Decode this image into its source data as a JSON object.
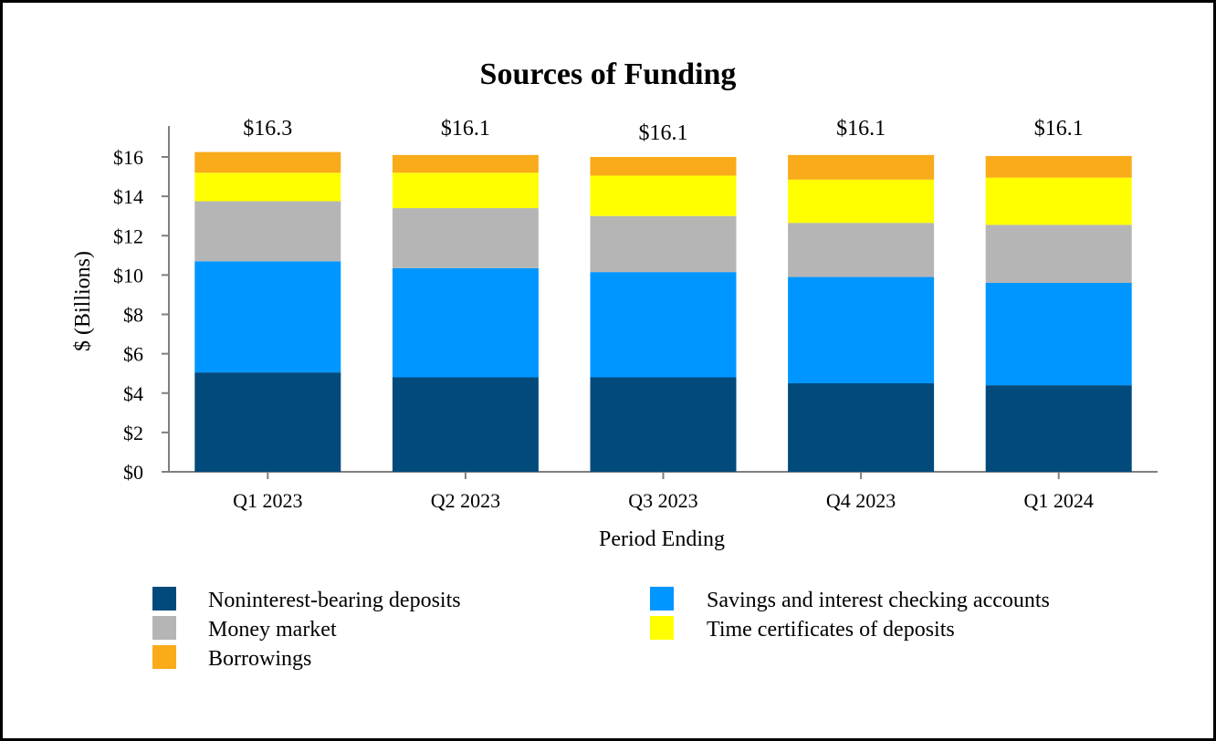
{
  "chart_data": {
    "type": "bar",
    "stacked": true,
    "title": "Sources of Funding",
    "xlabel": "Period Ending",
    "ylabel": "$ (Billions)",
    "ylim": [
      0,
      16
    ],
    "yticks": [
      "$0",
      "$2",
      "$4",
      "$6",
      "$8",
      "$10",
      "$12",
      "$14",
      "$16"
    ],
    "categories": [
      "Q1 2023",
      "Q2 2023",
      "Q3 2023",
      "Q4 2023",
      "Q1 2024"
    ],
    "totals": [
      "$16.3",
      "$16.1",
      "$16.1",
      "$16.1",
      "$16.1"
    ],
    "series": [
      {
        "name": "Noninterest-bearing deposits",
        "color": "#024a7c",
        "values": [
          5.05,
          4.8,
          4.8,
          4.5,
          4.4
        ]
      },
      {
        "name": "Savings and interest checking accounts",
        "color": "#0096ff",
        "values": [
          5.65,
          5.55,
          5.35,
          5.4,
          5.2
        ]
      },
      {
        "name": "Money market",
        "color": "#b5b5b5",
        "values": [
          3.05,
          3.05,
          2.85,
          2.75,
          2.95
        ]
      },
      {
        "name": "Time certificates of deposits",
        "color": "#ffff00",
        "values": [
          1.45,
          1.8,
          2.05,
          2.2,
          2.4
        ]
      },
      {
        "name": "Borrowings",
        "color": "#f9ab1a",
        "values": [
          1.05,
          0.9,
          0.95,
          1.25,
          1.1
        ]
      }
    ],
    "legend_position": "bottom",
    "grid": false
  }
}
